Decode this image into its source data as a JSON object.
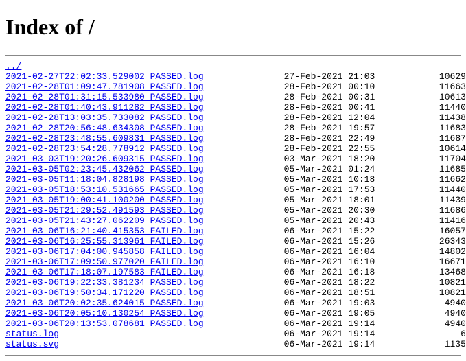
{
  "title": "Index of /",
  "parent_link": "../",
  "colwidth_name": 52,
  "colwidth_date": 34,
  "entries": [
    {
      "name": "2021-02-27T22:02:33.529002_PASSED.log",
      "date": "27-Feb-2021 21:03",
      "size": "10629"
    },
    {
      "name": "2021-02-28T01:09:47.781908_PASSED.log",
      "date": "28-Feb-2021 00:10",
      "size": "11663"
    },
    {
      "name": "2021-02-28T01:31:15.533980_PASSED.log",
      "date": "28-Feb-2021 00:31",
      "size": "10613"
    },
    {
      "name": "2021-02-28T01:40:43.911282_PASSED.log",
      "date": "28-Feb-2021 00:41",
      "size": "11440"
    },
    {
      "name": "2021-02-28T13:03:35.733082_PASSED.log",
      "date": "28-Feb-2021 12:04",
      "size": "11438"
    },
    {
      "name": "2021-02-28T20:56:48.634308_PASSED.log",
      "date": "28-Feb-2021 19:57",
      "size": "11683"
    },
    {
      "name": "2021-02-28T23:48:55.609831_PASSED.log",
      "date": "28-Feb-2021 22:49",
      "size": "11687"
    },
    {
      "name": "2021-02-28T23:54:28.778912_PASSED.log",
      "date": "28-Feb-2021 22:55",
      "size": "10614"
    },
    {
      "name": "2021-03-03T19:20:26.609315_PASSED.log",
      "date": "03-Mar-2021 18:20",
      "size": "11704"
    },
    {
      "name": "2021-03-05T02:23:45.432062_PASSED.log",
      "date": "05-Mar-2021 01:24",
      "size": "11685"
    },
    {
      "name": "2021-03-05T11:18:04.828198_PASSED.log",
      "date": "05-Mar-2021 10:18",
      "size": "11662"
    },
    {
      "name": "2021-03-05T18:53:10.531665_PASSED.log",
      "date": "05-Mar-2021 17:53",
      "size": "11440"
    },
    {
      "name": "2021-03-05T19:00:41.100200_PASSED.log",
      "date": "05-Mar-2021 18:01",
      "size": "11439"
    },
    {
      "name": "2021-03-05T21:29:52.491593_PASSED.log",
      "date": "05-Mar-2021 20:30",
      "size": "11686"
    },
    {
      "name": "2021-03-05T21:43:27.062209_PASSED.log",
      "date": "05-Mar-2021 20:43",
      "size": "11416"
    },
    {
      "name": "2021-03-06T16:21:40.415353_FAILED.log",
      "date": "06-Mar-2021 15:22",
      "size": "16057"
    },
    {
      "name": "2021-03-06T16:25:55.313961_FAILED.log",
      "date": "06-Mar-2021 15:26",
      "size": "26343"
    },
    {
      "name": "2021-03-06T17:04:00.945858_FAILED.log",
      "date": "06-Mar-2021 16:04",
      "size": "14802"
    },
    {
      "name": "2021-03-06T17:09:50.977020_FAILED.log",
      "date": "06-Mar-2021 16:10",
      "size": "16671"
    },
    {
      "name": "2021-03-06T17:18:07.197583_FAILED.log",
      "date": "06-Mar-2021 16:18",
      "size": "13468"
    },
    {
      "name": "2021-03-06T19:22:33.381234_PASSED.log",
      "date": "06-Mar-2021 18:22",
      "size": "10821"
    },
    {
      "name": "2021-03-06T19:50:34.171220_PASSED.log",
      "date": "06-Mar-2021 18:51",
      "size": "10821"
    },
    {
      "name": "2021-03-06T20:02:35.624015_PASSED.log",
      "date": "06-Mar-2021 19:03",
      "size": "4940"
    },
    {
      "name": "2021-03-06T20:05:10.130254_PASSED.log",
      "date": "06-Mar-2021 19:05",
      "size": "4940"
    },
    {
      "name": "2021-03-06T20:13:53.078681_PASSED.log",
      "date": "06-Mar-2021 19:14",
      "size": "4940"
    },
    {
      "name": "status.log",
      "date": "06-Mar-2021 19:14",
      "size": "6"
    },
    {
      "name": "status.svg",
      "date": "06-Mar-2021 19:14",
      "size": "1135"
    }
  ]
}
